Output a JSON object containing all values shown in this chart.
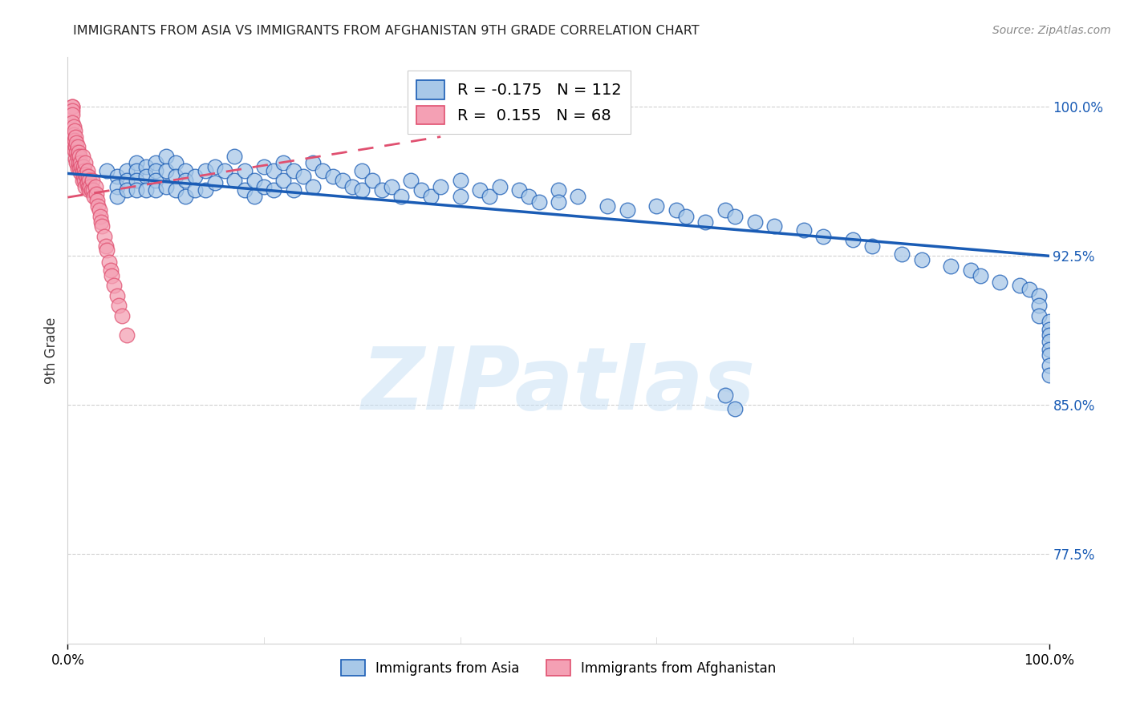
{
  "title": "IMMIGRANTS FROM ASIA VS IMMIGRANTS FROM AFGHANISTAN 9TH GRADE CORRELATION CHART",
  "source": "Source: ZipAtlas.com",
  "ylabel": "9th Grade",
  "xticklabels": [
    "0.0%",
    "100.0%"
  ],
  "yticklabels_right": [
    "100.0%",
    "92.5%",
    "85.0%",
    "77.5%"
  ],
  "yticklabel_right_values": [
    1.0,
    0.925,
    0.85,
    0.775
  ],
  "xlim": [
    0.0,
    1.0
  ],
  "ylim": [
    0.73,
    1.025
  ],
  "legend_r1": "-0.175",
  "legend_n1": "112",
  "legend_r2": "0.155",
  "legend_n2": "68",
  "color_asia": "#a8c8e8",
  "color_afghanistan": "#f4a0b4",
  "color_asia_line": "#1a5cb5",
  "color_afghanistan_line": "#e05070",
  "watermark_text": "ZIPatlas",
  "background_color": "#ffffff",
  "asia_x": [
    0.02,
    0.04,
    0.05,
    0.05,
    0.05,
    0.06,
    0.06,
    0.06,
    0.07,
    0.07,
    0.07,
    0.07,
    0.08,
    0.08,
    0.08,
    0.09,
    0.09,
    0.09,
    0.09,
    0.1,
    0.1,
    0.1,
    0.11,
    0.11,
    0.11,
    0.12,
    0.12,
    0.12,
    0.13,
    0.13,
    0.14,
    0.14,
    0.15,
    0.15,
    0.16,
    0.17,
    0.17,
    0.18,
    0.18,
    0.19,
    0.19,
    0.2,
    0.2,
    0.21,
    0.21,
    0.22,
    0.22,
    0.23,
    0.23,
    0.24,
    0.25,
    0.25,
    0.26,
    0.27,
    0.28,
    0.29,
    0.3,
    0.3,
    0.31,
    0.32,
    0.33,
    0.34,
    0.35,
    0.36,
    0.37,
    0.38,
    0.4,
    0.4,
    0.42,
    0.43,
    0.44,
    0.46,
    0.47,
    0.48,
    0.5,
    0.5,
    0.52,
    0.55,
    0.57,
    0.6,
    0.62,
    0.63,
    0.65,
    0.67,
    0.68,
    0.7,
    0.72,
    0.75,
    0.77,
    0.8,
    0.82,
    0.85,
    0.87,
    0.9,
    0.92,
    0.93,
    0.95,
    0.97,
    0.98,
    0.99,
    0.99,
    0.99,
    1.0,
    1.0,
    1.0,
    1.0,
    1.0,
    1.0,
    1.0,
    1.0,
    0.67,
    0.68
  ],
  "asia_y": [
    0.963,
    0.968,
    0.965,
    0.96,
    0.955,
    0.968,
    0.963,
    0.958,
    0.972,
    0.968,
    0.963,
    0.958,
    0.97,
    0.965,
    0.958,
    0.972,
    0.968,
    0.963,
    0.958,
    0.975,
    0.968,
    0.96,
    0.972,
    0.965,
    0.958,
    0.968,
    0.963,
    0.955,
    0.965,
    0.958,
    0.968,
    0.958,
    0.97,
    0.962,
    0.968,
    0.975,
    0.963,
    0.968,
    0.958,
    0.963,
    0.955,
    0.97,
    0.96,
    0.968,
    0.958,
    0.972,
    0.963,
    0.968,
    0.958,
    0.965,
    0.972,
    0.96,
    0.968,
    0.965,
    0.963,
    0.96,
    0.968,
    0.958,
    0.963,
    0.958,
    0.96,
    0.955,
    0.963,
    0.958,
    0.955,
    0.96,
    0.963,
    0.955,
    0.958,
    0.955,
    0.96,
    0.958,
    0.955,
    0.952,
    0.958,
    0.952,
    0.955,
    0.95,
    0.948,
    0.95,
    0.948,
    0.945,
    0.942,
    0.948,
    0.945,
    0.942,
    0.94,
    0.938,
    0.935,
    0.933,
    0.93,
    0.926,
    0.923,
    0.92,
    0.918,
    0.915,
    0.912,
    0.91,
    0.908,
    0.905,
    0.9,
    0.895,
    0.892,
    0.888,
    0.885,
    0.882,
    0.878,
    0.875,
    0.87,
    0.865,
    0.855,
    0.848
  ],
  "afghan_x": [
    0.005,
    0.005,
    0.005,
    0.005,
    0.005,
    0.006,
    0.006,
    0.006,
    0.007,
    0.007,
    0.007,
    0.008,
    0.008,
    0.008,
    0.009,
    0.009,
    0.009,
    0.01,
    0.01,
    0.01,
    0.011,
    0.011,
    0.012,
    0.012,
    0.013,
    0.013,
    0.014,
    0.015,
    0.015,
    0.015,
    0.016,
    0.016,
    0.017,
    0.017,
    0.018,
    0.018,
    0.018,
    0.019,
    0.02,
    0.02,
    0.021,
    0.021,
    0.022,
    0.022,
    0.023,
    0.024,
    0.025,
    0.026,
    0.027,
    0.028,
    0.029,
    0.03,
    0.031,
    0.032,
    0.033,
    0.034,
    0.035,
    0.037,
    0.039,
    0.04,
    0.042,
    0.044,
    0.045,
    0.047,
    0.05,
    0.052,
    0.055,
    0.06
  ],
  "afghan_y": [
    1.0,
    1.0,
    0.998,
    0.996,
    0.992,
    0.99,
    0.986,
    0.982,
    0.988,
    0.983,
    0.978,
    0.985,
    0.98,
    0.974,
    0.982,
    0.977,
    0.972,
    0.98,
    0.975,
    0.969,
    0.977,
    0.972,
    0.975,
    0.969,
    0.972,
    0.967,
    0.97,
    0.975,
    0.968,
    0.963,
    0.97,
    0.965,
    0.968,
    0.963,
    0.972,
    0.966,
    0.96,
    0.965,
    0.968,
    0.962,
    0.965,
    0.96,
    0.963,
    0.958,
    0.96,
    0.958,
    0.963,
    0.958,
    0.955,
    0.96,
    0.956,
    0.953,
    0.95,
    0.948,
    0.945,
    0.942,
    0.94,
    0.935,
    0.93,
    0.928,
    0.922,
    0.918,
    0.915,
    0.91,
    0.905,
    0.9,
    0.895,
    0.885
  ],
  "asia_line_x": [
    0.0,
    1.0
  ],
  "asia_line_y": [
    0.9665,
    0.925
  ],
  "afghan_line_x": [
    0.0,
    0.38
  ],
  "afghan_line_y": [
    0.9545,
    0.985
  ]
}
